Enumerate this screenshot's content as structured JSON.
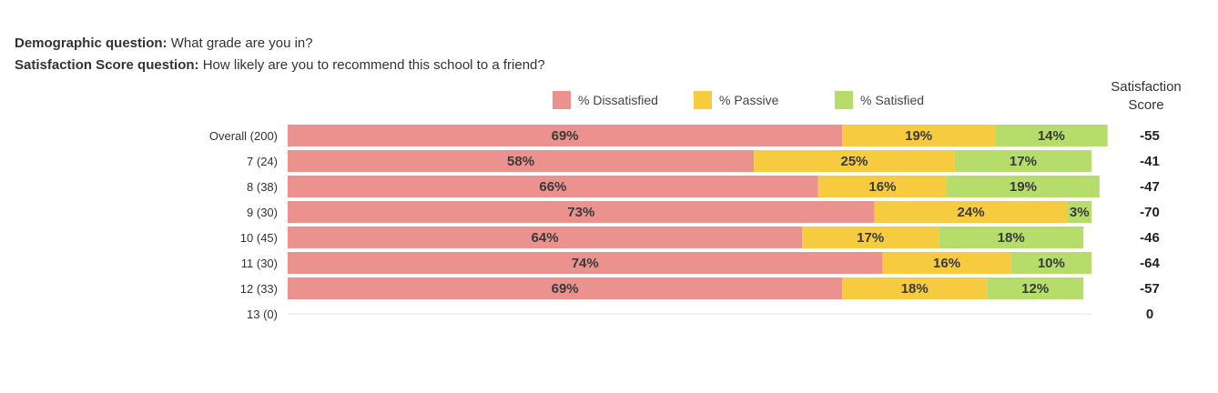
{
  "questions": {
    "demographic_label": "Demographic question:",
    "demographic_text": "What grade are you in?",
    "satisfaction_label": "Satisfaction Score question:",
    "satisfaction_text": "How likely are you to recommend this school to a friend?"
  },
  "chart_data": {
    "type": "bar",
    "orientation": "horizontal",
    "stacked": true,
    "legend_position": "top",
    "score_header": [
      "Satisfaction",
      "Score"
    ],
    "categories": [
      "Overall (200)",
      "7 (24)",
      "8 (38)",
      "9 (30)",
      "10 (45)",
      "11 (30)",
      "12 (33)",
      "13 (0)"
    ],
    "series": [
      {
        "name": "% Dissatisfied",
        "color": "#eb928e",
        "values": [
          69,
          58,
          66,
          73,
          64,
          74,
          69,
          0
        ]
      },
      {
        "name": "% Passive",
        "color": "#f7cb3f",
        "values": [
          19,
          25,
          16,
          24,
          17,
          16,
          18,
          0
        ]
      },
      {
        "name": "% Satisfied",
        "color": "#b6dc6c",
        "values": [
          14,
          17,
          19,
          3,
          18,
          10,
          12,
          0
        ]
      }
    ],
    "satisfaction_scores": [
      "-55",
      "-41",
      "-47",
      "-70",
      "-46",
      "-64",
      "-57",
      "0"
    ]
  }
}
